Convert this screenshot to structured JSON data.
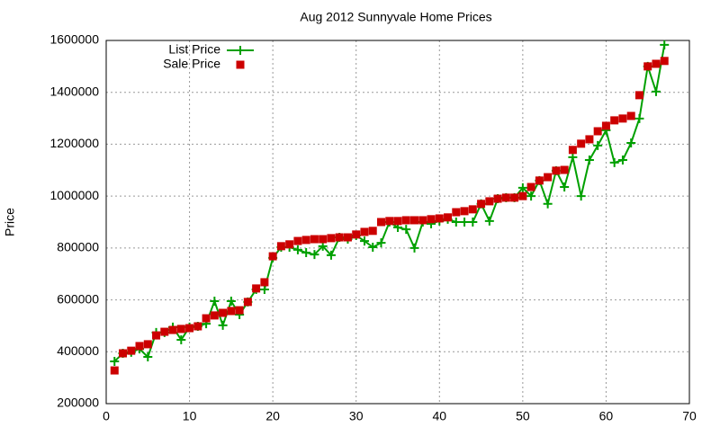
{
  "chart_data": {
    "type": "line",
    "title": "Aug 2012 Sunnyvale Home Prices",
    "y_label": "Price",
    "x": [
      1,
      2,
      3,
      4,
      5,
      6,
      7,
      8,
      9,
      10,
      11,
      12,
      13,
      14,
      15,
      16,
      17,
      18,
      19,
      20,
      21,
      22,
      23,
      24,
      25,
      26,
      27,
      28,
      29,
      30,
      31,
      32,
      33,
      34,
      35,
      36,
      37,
      38,
      39,
      40,
      41,
      42,
      43,
      44,
      45,
      46,
      47,
      48,
      49,
      50,
      51,
      52,
      53,
      54,
      55,
      56,
      57,
      58,
      59,
      60,
      61,
      62,
      63,
      64,
      65,
      66,
      67
    ],
    "series": [
      {
        "name": "List Price",
        "color": "#00a000",
        "marker": "plus",
        "line": true,
        "values": [
          363000,
          394000,
          398000,
          411000,
          380000,
          474000,
          474000,
          495000,
          446000,
          495000,
          498000,
          508000,
          595000,
          502000,
          595000,
          543000,
          592000,
          640000,
          640000,
          762000,
          803000,
          803000,
          793000,
          782000,
          775000,
          807000,
          772000,
          841000,
          834000,
          848000,
          827000,
          803000,
          820000,
          900000,
          879000,
          872000,
          800000,
          900000,
          893000,
          904000,
          911000,
          900000,
          900000,
          900000,
          970000,
          904000,
          990000,
          994000,
          994000,
          1032000,
          1000000,
          1060000,
          970000,
          1098000,
          1035000,
          1150000,
          1000000,
          1139000,
          1195000,
          1254000,
          1129000,
          1139000,
          1205000,
          1299000,
          1500000,
          1403000,
          1583000
        ]
      },
      {
        "name": "Sale Price",
        "color": "#cc0000",
        "marker": "square",
        "line": false,
        "values": [
          328000,
          394000,
          404000,
          422000,
          429000,
          463000,
          477000,
          484000,
          488000,
          491000,
          498000,
          529000,
          540000,
          550000,
          557000,
          560000,
          592000,
          644000,
          668000,
          768000,
          807000,
          814000,
          827000,
          831000,
          834000,
          834000,
          838000,
          841000,
          841000,
          852000,
          862000,
          866000,
          900000,
          904000,
          904000,
          907000,
          907000,
          907000,
          911000,
          914000,
          918000,
          938000,
          942000,
          949000,
          970000,
          980000,
          990000,
          994000,
          994000,
          1000000,
          1035000,
          1060000,
          1073000,
          1098000,
          1101000,
          1178000,
          1202000,
          1219000,
          1250000,
          1271000,
          1292000,
          1299000,
          1309000,
          1389000,
          1500000,
          1510000,
          1521000
        ]
      }
    ],
    "xlim": [
      0,
      70
    ],
    "xticks": [
      0,
      10,
      20,
      30,
      40,
      50,
      60,
      70
    ],
    "ylim": [
      200000,
      1600000
    ],
    "yticks": [
      200000,
      400000,
      600000,
      800000,
      1000000,
      1200000,
      1400000,
      1600000
    ],
    "grid": true,
    "legend": "top-left"
  }
}
